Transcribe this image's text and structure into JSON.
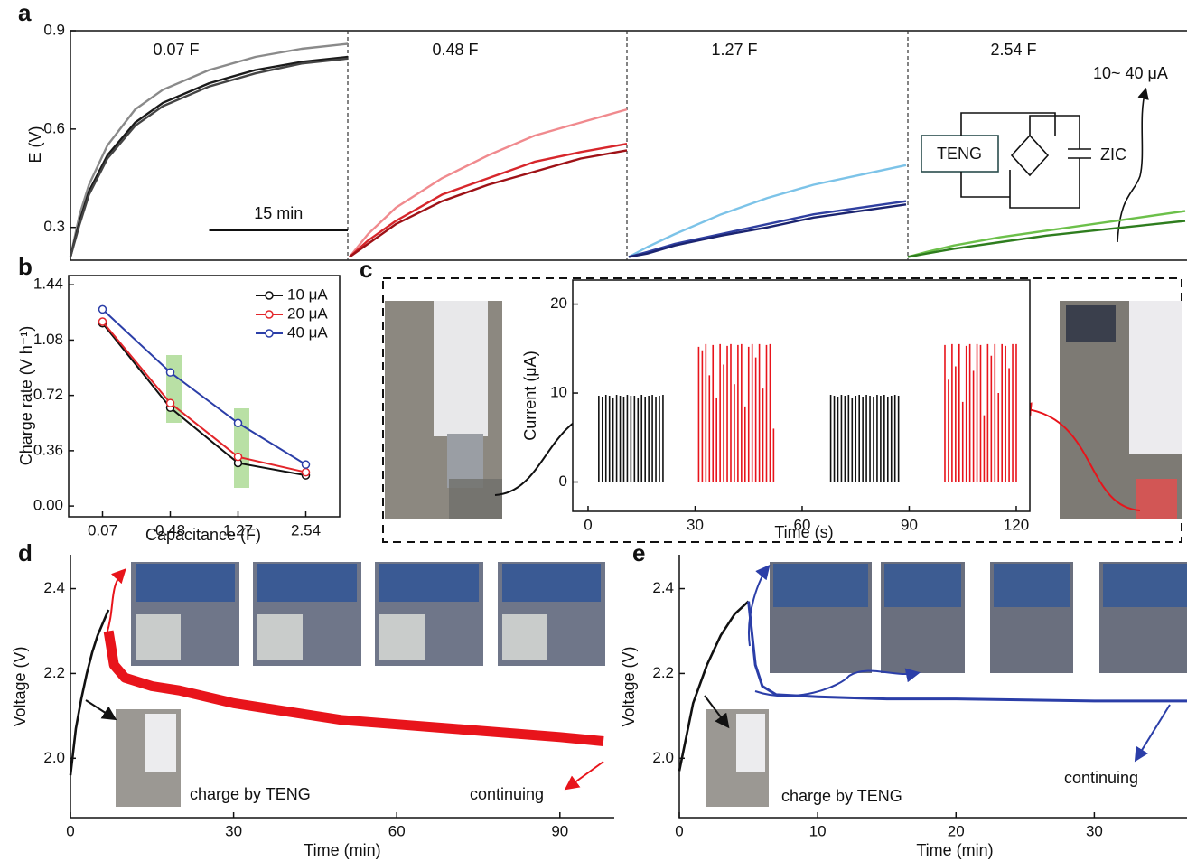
{
  "panel_labels": [
    "a",
    "b",
    "c",
    "d",
    "e"
  ],
  "chart_data": [
    {
      "type": "line",
      "title": "0.07 F",
      "ylabel": "E (V)",
      "xlim": [
        0,
        30
      ],
      "ylim": [
        0.2,
        0.9
      ],
      "yticks": [
        0.3,
        0.6,
        0.9
      ],
      "scalebar": 15,
      "scalebar_label": "15 min",
      "x": [
        0,
        1,
        2,
        4,
        7,
        10,
        15,
        20,
        25,
        30
      ],
      "series": [
        {
          "color": "#8a8a8a",
          "values": [
            0.21,
            0.34,
            0.43,
            0.55,
            0.66,
            0.72,
            0.78,
            0.82,
            0.845,
            0.86
          ]
        },
        {
          "color": "#1a1a1a",
          "values": [
            0.21,
            0.32,
            0.41,
            0.52,
            0.62,
            0.68,
            0.74,
            0.78,
            0.805,
            0.82
          ]
        },
        {
          "color": "#444444",
          "values": [
            0.21,
            0.31,
            0.4,
            0.51,
            0.61,
            0.67,
            0.73,
            0.77,
            0.8,
            0.815
          ]
        }
      ]
    },
    {
      "type": "line",
      "title": "0.48 F",
      "xlim": [
        0,
        30
      ],
      "ylim": [
        0.2,
        0.9
      ],
      "x": [
        0,
        2,
        5,
        10,
        15,
        20,
        25,
        30
      ],
      "series": [
        {
          "color": "#f08a8e",
          "values": [
            0.21,
            0.28,
            0.36,
            0.45,
            0.52,
            0.58,
            0.62,
            0.66
          ]
        },
        {
          "color": "#d7262b",
          "values": [
            0.21,
            0.26,
            0.32,
            0.4,
            0.45,
            0.5,
            0.53,
            0.555
          ]
        },
        {
          "color": "#9e1116",
          "values": [
            0.21,
            0.25,
            0.31,
            0.38,
            0.43,
            0.47,
            0.51,
            0.535
          ]
        }
      ]
    },
    {
      "type": "line",
      "title": "1.27 F",
      "xlim": [
        0,
        30
      ],
      "ylim": [
        0.2,
        0.9
      ],
      "x": [
        0,
        2,
        5,
        10,
        15,
        20,
        25,
        30
      ],
      "series": [
        {
          "color": "#7cc3e8",
          "values": [
            0.21,
            0.24,
            0.28,
            0.34,
            0.39,
            0.43,
            0.46,
            0.49
          ]
        },
        {
          "color": "#2f3fa0",
          "values": [
            0.21,
            0.225,
            0.25,
            0.28,
            0.31,
            0.34,
            0.36,
            0.38
          ]
        },
        {
          "color": "#1b2470",
          "values": [
            0.21,
            0.22,
            0.245,
            0.275,
            0.3,
            0.33,
            0.35,
            0.37
          ]
        }
      ]
    },
    {
      "type": "line",
      "title": "2.54 F",
      "xlim": [
        0,
        30
      ],
      "ylim": [
        0.2,
        0.9
      ],
      "x": [
        0,
        2,
        5,
        10,
        15,
        20,
        25,
        30
      ],
      "annotations": [
        "TENG",
        "ZIC",
        "10~ 40 μA"
      ],
      "series": [
        {
          "color": "#6cc04a",
          "values": [
            0.21,
            0.225,
            0.245,
            0.27,
            0.29,
            0.31,
            0.33,
            0.35
          ]
        },
        {
          "color": "#2e7d1e",
          "values": [
            0.21,
            0.22,
            0.235,
            0.255,
            0.275,
            0.29,
            0.305,
            0.32
          ]
        }
      ]
    },
    {
      "type": "line",
      "xlabel": "Capacitance (F)",
      "ylabel": "Charge rate (V h⁻¹)",
      "categories": [
        "0.07",
        "0.48",
        "1.27",
        "2.54"
      ],
      "ylim": [
        -0.07,
        1.5
      ],
      "yticks": [
        {
          "value": 0,
          "label": "0.00"
        },
        0.36,
        0.72,
        1.08,
        1.44
      ],
      "legend": "upper right",
      "series": [
        {
          "name": "10 μA",
          "color": "#111111",
          "values": [
            1.19,
            0.64,
            0.28,
            0.2
          ]
        },
        {
          "name": "20 μA",
          "color": "#e3262b",
          "values": [
            1.2,
            0.67,
            0.32,
            0.22
          ]
        },
        {
          "name": "40 μA",
          "color": "#2b3ea8",
          "values": [
            1.28,
            0.87,
            0.54,
            0.27
          ]
        }
      ]
    },
    {
      "type": "spike",
      "xlabel": "Time (s)",
      "ylabel": "Current (μA)",
      "xlim": [
        -4.3,
        123.8
      ],
      "ylim": [
        -3.3,
        22.7
      ],
      "xticks": [
        0,
        30,
        60,
        90,
        120
      ],
      "yticks": [
        0,
        10,
        20
      ],
      "series": [
        {
          "color": "#111111",
          "x": [
            3,
            4,
            5,
            6,
            7,
            8,
            9,
            10,
            11,
            12,
            13,
            14,
            15,
            16,
            17,
            18,
            19,
            20,
            21,
            68,
            69,
            70,
            71,
            72,
            73,
            74,
            75,
            76,
            77,
            78,
            79,
            80,
            81,
            82,
            83,
            84,
            85,
            86,
            87
          ],
          "values": [
            9.7,
            9.6,
            9.8,
            9.7,
            9.5,
            9.8,
            9.7,
            9.6,
            9.8,
            9.7,
            9.7,
            9.5,
            9.8,
            9.6,
            9.7,
            9.8,
            9.6,
            9.7,
            9.8,
            9.8,
            9.7,
            9.6,
            9.8,
            9.7,
            9.8,
            9.5,
            9.7,
            9.8,
            9.6,
            9.8,
            9.7,
            9.6,
            9.8,
            9.7,
            9.8,
            9.6,
            9.7,
            9.8,
            9.7
          ]
        },
        {
          "color": "#e8141b",
          "x": [
            31,
            32,
            33,
            34,
            35,
            36,
            37,
            38,
            39,
            40,
            41,
            42,
            43,
            44,
            45,
            46,
            47,
            48,
            49,
            50,
            51,
            52,
            100,
            101,
            102,
            103,
            104,
            105,
            106,
            107,
            108,
            109,
            110,
            111,
            112,
            113,
            114,
            115,
            116,
            117,
            118,
            119,
            120
          ],
          "values": [
            15.2,
            14.8,
            15.5,
            12.0,
            15.4,
            9.5,
            15.5,
            13.2,
            15.3,
            15.5,
            11.0,
            15.4,
            15.5,
            8.5,
            15.2,
            15.5,
            14.0,
            15.5,
            10.5,
            15.4,
            15.5,
            6.0,
            15.4,
            11.5,
            15.5,
            13.0,
            15.5,
            9.0,
            15.3,
            15.5,
            12.5,
            15.5,
            15.4,
            7.5,
            15.5,
            14.2,
            15.5,
            10.0,
            15.5,
            15.3,
            12.8,
            15.5,
            15.5
          ]
        }
      ]
    },
    {
      "type": "line",
      "xlabel": "Time (min)",
      "ylabel": "Voltage (V)",
      "xlim": [
        0,
        100
      ],
      "ylim": [
        1.86,
        2.48
      ],
      "xticks": [
        0,
        30,
        60,
        90
      ],
      "yticks": [
        {
          "value": 2,
          "label": "2.0"
        },
        2.2,
        2.4
      ],
      "annotations": [
        "charge by TENG",
        "continuing"
      ],
      "series": [
        {
          "color": "#111111",
          "x": [
            0,
            1,
            2,
            3,
            4,
            5,
            6,
            7
          ],
          "values": [
            1.96,
            2.07,
            2.14,
            2.2,
            2.25,
            2.29,
            2.32,
            2.35
          ]
        },
        {
          "color": "#e8141b",
          "x": [
            7,
            8,
            10,
            15,
            20,
            30,
            40,
            50,
            60,
            70,
            80,
            90,
            98
          ],
          "values": [
            2.3,
            2.22,
            2.19,
            2.17,
            2.16,
            2.13,
            2.11,
            2.09,
            2.08,
            2.07,
            2.06,
            2.05,
            2.04
          ]
        }
      ]
    },
    {
      "type": "line",
      "xlabel": "Time (min)",
      "ylabel": "Voltage (V)",
      "xlim": [
        0,
        36.7
      ],
      "ylim": [
        1.86,
        2.48
      ],
      "xticks": [
        0,
        10,
        20,
        30
      ],
      "yticks": [
        {
          "value": 2,
          "label": "2.0"
        },
        2.2,
        2.4
      ],
      "annotations": [
        "charge by TENG",
        "continuing"
      ],
      "series": [
        {
          "color": "#111111",
          "x": [
            0,
            1,
            2,
            3,
            4,
            5
          ],
          "values": [
            1.97,
            2.13,
            2.22,
            2.29,
            2.34,
            2.37
          ]
        },
        {
          "color": "#2b3ea8",
          "x": [
            5,
            5.5,
            6,
            7,
            10,
            15,
            20,
            30,
            36.7
          ],
          "values": [
            2.37,
            2.22,
            2.17,
            2.15,
            2.145,
            2.14,
            2.14,
            2.135,
            2.135
          ]
        }
      ]
    }
  ]
}
